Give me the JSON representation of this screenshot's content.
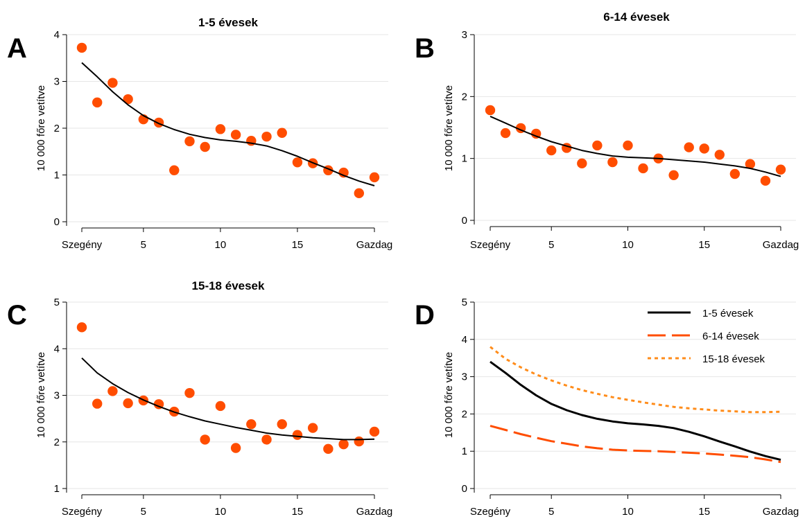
{
  "chart_data": [
    {
      "panel": "A",
      "type": "scatter",
      "title": "1-5 évesek",
      "ylabel": "10 000 főre vetítve",
      "xlim": [
        1,
        20
      ],
      "ylim": [
        0,
        4
      ],
      "yticks": [
        0,
        1,
        2,
        3,
        4
      ],
      "xticks": [
        {
          "value": 1,
          "label": "Szegény"
        },
        {
          "value": 5,
          "label": "5"
        },
        {
          "value": 10,
          "label": "10"
        },
        {
          "value": 15,
          "label": "15"
        },
        {
          "value": 20,
          "label": "Gazdag"
        }
      ],
      "grid": true,
      "points_color": "#ff4d00",
      "points": {
        "x": [
          1,
          2,
          3,
          4,
          5,
          6,
          7,
          8,
          9,
          10,
          11,
          12,
          13,
          14,
          15,
          16,
          17,
          18,
          19,
          20
        ],
        "y": [
          3.72,
          2.55,
          2.97,
          2.62,
          2.19,
          2.12,
          1.1,
          1.72,
          1.6,
          1.98,
          1.86,
          1.73,
          1.82,
          1.9,
          1.27,
          1.25,
          1.1,
          1.05,
          0.61,
          0.95
        ]
      },
      "fit": {
        "x": [
          1,
          2,
          3,
          4,
          5,
          6,
          7,
          8,
          9,
          10,
          11,
          12,
          13,
          14,
          15,
          16,
          17,
          18,
          19,
          20
        ],
        "y": [
          3.4,
          3.1,
          2.78,
          2.5,
          2.27,
          2.1,
          1.97,
          1.87,
          1.8,
          1.75,
          1.72,
          1.68,
          1.62,
          1.52,
          1.4,
          1.26,
          1.13,
          0.99,
          0.87,
          0.77
        ]
      }
    },
    {
      "panel": "B",
      "type": "scatter",
      "title": "6-14 évesek",
      "ylabel": "10 000 főre vetítve",
      "xlim": [
        1,
        20
      ],
      "ylim": [
        0,
        3
      ],
      "yticks": [
        0,
        1,
        2,
        3
      ],
      "xticks": [
        {
          "value": 1,
          "label": "Szegény"
        },
        {
          "value": 5,
          "label": "5"
        },
        {
          "value": 10,
          "label": "10"
        },
        {
          "value": 15,
          "label": "15"
        },
        {
          "value": 20,
          "label": "Gazdag"
        }
      ],
      "grid": true,
      "points_color": "#ff4d00",
      "points": {
        "x": [
          1,
          2,
          3,
          4,
          5,
          6,
          7,
          8,
          9,
          10,
          11,
          12,
          13,
          14,
          15,
          16,
          17,
          18,
          19,
          20
        ],
        "y": [
          1.78,
          1.41,
          1.49,
          1.4,
          1.13,
          1.17,
          0.92,
          1.21,
          0.94,
          1.21,
          0.84,
          1.0,
          0.73,
          1.18,
          1.16,
          1.06,
          0.75,
          0.91,
          0.64,
          0.82
        ]
      },
      "fit": {
        "x": [
          1,
          2,
          3,
          4,
          5,
          6,
          7,
          8,
          9,
          10,
          11,
          12,
          13,
          14,
          15,
          16,
          17,
          18,
          19,
          20
        ],
        "y": [
          1.68,
          1.57,
          1.46,
          1.36,
          1.27,
          1.2,
          1.13,
          1.08,
          1.04,
          1.02,
          1.01,
          1.0,
          0.98,
          0.96,
          0.94,
          0.91,
          0.88,
          0.84,
          0.78,
          0.71
        ]
      }
    },
    {
      "panel": "C",
      "type": "scatter",
      "title": "15-18 évesek",
      "ylabel": "10 000 főre vetítve",
      "xlim": [
        1,
        20
      ],
      "ylim": [
        1,
        5
      ],
      "yticks": [
        1,
        2,
        3,
        4,
        5
      ],
      "xticks": [
        {
          "value": 1,
          "label": "Szegény"
        },
        {
          "value": 5,
          "label": "5"
        },
        {
          "value": 10,
          "label": "10"
        },
        {
          "value": 15,
          "label": "15"
        },
        {
          "value": 20,
          "label": "Gazdag"
        }
      ],
      "grid": true,
      "points_color": "#ff4d00",
      "points": {
        "x": [
          1,
          2,
          3,
          4,
          5,
          6,
          7,
          8,
          9,
          10,
          11,
          12,
          13,
          14,
          15,
          16,
          17,
          18,
          19,
          20
        ],
        "y": [
          4.46,
          2.82,
          3.09,
          2.83,
          2.89,
          2.81,
          2.65,
          3.05,
          2.05,
          2.77,
          1.87,
          2.38,
          2.05,
          2.38,
          2.15,
          2.3,
          1.85,
          1.95,
          2.01,
          2.22
        ]
      },
      "fit": {
        "x": [
          1,
          2,
          3,
          4,
          5,
          6,
          7,
          8,
          9,
          10,
          11,
          12,
          13,
          14,
          15,
          16,
          17,
          18,
          19,
          20
        ],
        "y": [
          3.8,
          3.48,
          3.25,
          3.06,
          2.9,
          2.76,
          2.64,
          2.54,
          2.45,
          2.38,
          2.31,
          2.25,
          2.19,
          2.15,
          2.12,
          2.09,
          2.07,
          2.05,
          2.05,
          2.06
        ]
      }
    },
    {
      "panel": "D",
      "type": "line",
      "title": "",
      "ylabel": "10 000 főre vetítve",
      "xlim": [
        1,
        20
      ],
      "ylim": [
        0,
        5
      ],
      "yticks": [
        0,
        1,
        2,
        3,
        4,
        5
      ],
      "xticks": [
        {
          "value": 1,
          "label": "Szegény"
        },
        {
          "value": 5,
          "label": "5"
        },
        {
          "value": 10,
          "label": "10"
        },
        {
          "value": 15,
          "label": "15"
        },
        {
          "value": 20,
          "label": "Gazdag"
        }
      ],
      "grid": true,
      "legend_position": "top-right",
      "series": [
        {
          "name": "1-5 évesek",
          "color": "#000000",
          "style": "solid",
          "x": [
            1,
            2,
            3,
            4,
            5,
            6,
            7,
            8,
            9,
            10,
            11,
            12,
            13,
            14,
            15,
            16,
            17,
            18,
            19,
            20
          ],
          "y": [
            3.4,
            3.1,
            2.78,
            2.5,
            2.27,
            2.1,
            1.97,
            1.87,
            1.8,
            1.75,
            1.72,
            1.68,
            1.62,
            1.52,
            1.4,
            1.26,
            1.13,
            0.99,
            0.87,
            0.77
          ]
        },
        {
          "name": "6-14 évesek",
          "color": "#ff4d00",
          "style": "dashed",
          "x": [
            1,
            2,
            3,
            4,
            5,
            6,
            7,
            8,
            9,
            10,
            11,
            12,
            13,
            14,
            15,
            16,
            17,
            18,
            19,
            20
          ],
          "y": [
            1.68,
            1.57,
            1.46,
            1.36,
            1.27,
            1.2,
            1.13,
            1.08,
            1.04,
            1.02,
            1.01,
            1.0,
            0.98,
            0.96,
            0.94,
            0.91,
            0.88,
            0.84,
            0.78,
            0.71
          ]
        },
        {
          "name": "15-18 évesek",
          "color": "#ff8c1a",
          "style": "dotted",
          "x": [
            1,
            2,
            3,
            4,
            5,
            6,
            7,
            8,
            9,
            10,
            11,
            12,
            13,
            14,
            15,
            16,
            17,
            18,
            19,
            20
          ],
          "y": [
            3.8,
            3.48,
            3.25,
            3.06,
            2.9,
            2.76,
            2.64,
            2.54,
            2.45,
            2.38,
            2.31,
            2.25,
            2.19,
            2.15,
            2.12,
            2.09,
            2.07,
            2.05,
            2.05,
            2.06
          ]
        }
      ]
    }
  ]
}
